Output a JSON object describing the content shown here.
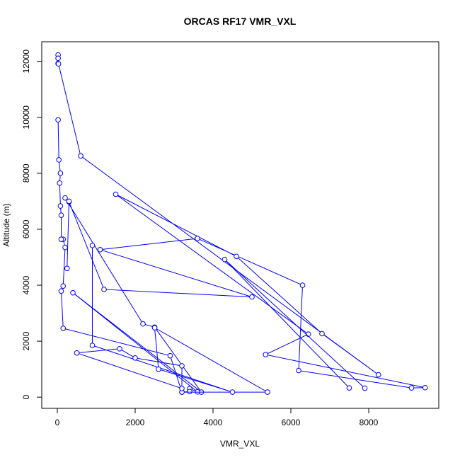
{
  "chart_data": {
    "type": "line",
    "title": "ORCAS RF17 VMR_VXL",
    "xlabel": "VMR_VXL",
    "ylabel": "Altitude (m)",
    "xlim": [
      -400,
      9800
    ],
    "ylim": [
      -400,
      12700
    ],
    "xticks": [
      0,
      2000,
      4000,
      6000,
      8000
    ],
    "yticks": [
      0,
      2000,
      4000,
      6000,
      8000,
      10000,
      12000
    ],
    "grid": false,
    "series_color": "#0000ff",
    "marker": "open-circle",
    "series": [
      {
        "points": [
          [
            20,
            12230
          ],
          [
            20,
            12110
          ],
          [
            20,
            11920
          ],
          [
            30,
            11910
          ],
          [
            600,
            8620
          ],
          [
            8250,
            800
          ],
          [
            6800,
            2270
          ],
          [
            4600,
            5030
          ],
          [
            1500,
            7250
          ],
          [
            6450,
            2250
          ],
          [
            5350,
            1520
          ],
          [
            9450,
            340
          ],
          [
            9100,
            330
          ],
          [
            6200,
            950
          ],
          [
            6300,
            4000
          ],
          [
            3600,
            5670
          ],
          [
            1100,
            5270
          ],
          [
            5000,
            3580
          ],
          [
            1200,
            3850
          ],
          [
            300,
            6980
          ],
          [
            200,
            7120
          ],
          [
            2200,
            2620
          ],
          [
            2500,
            2500
          ],
          [
            3700,
            180
          ],
          [
            400,
            3730
          ],
          [
            3600,
            190
          ],
          [
            3400,
            300
          ],
          [
            3400,
            200
          ],
          [
            3200,
            180
          ],
          [
            2900,
            1480
          ],
          [
            150,
            2460
          ],
          [
            100,
            3790
          ],
          [
            150,
            3970
          ],
          [
            200,
            5350
          ],
          [
            150,
            5640
          ],
          [
            100,
            5640
          ],
          [
            100,
            6500
          ],
          [
            80,
            6830
          ],
          [
            60,
            7650
          ],
          [
            80,
            8000
          ],
          [
            40,
            8480
          ],
          [
            20,
            9910
          ]
        ]
      },
      {
        "points": [
          [
            900,
            5420
          ],
          [
            900,
            1850
          ],
          [
            4500,
            180
          ],
          [
            2600,
            1000
          ],
          [
            2500,
            2480
          ],
          [
            5400,
            180
          ],
          [
            3200,
            180
          ],
          [
            3200,
            1120
          ],
          [
            2000,
            1400
          ],
          [
            1600,
            1730
          ],
          [
            500,
            1580
          ],
          [
            3200,
            310
          ]
        ]
      },
      {
        "points": [
          [
            7900,
            320
          ],
          [
            4300,
            4920
          ],
          [
            7500,
            330
          ]
        ]
      },
      {
        "points": [
          [
            250,
            4600
          ],
          [
            300,
            7000
          ]
        ]
      }
    ]
  }
}
